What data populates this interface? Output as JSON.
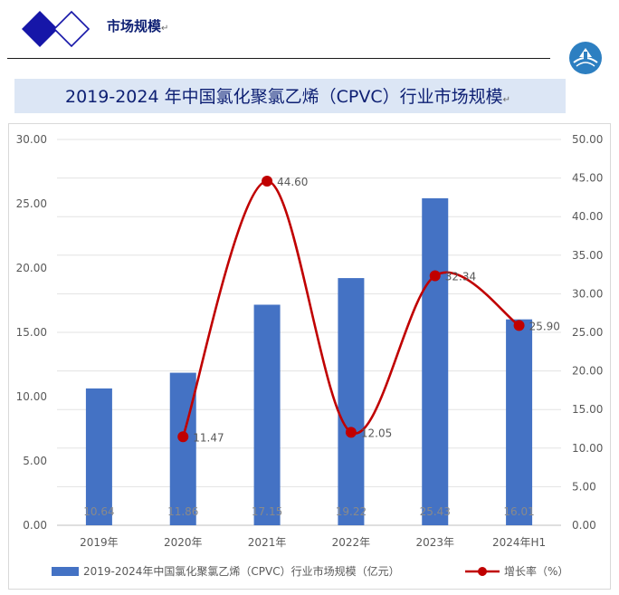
{
  "header": {
    "section_title": "市场规模",
    "return_mark": "↵"
  },
  "chart_data": {
    "type": "bar+line",
    "title": "2019-2024 年中国氯化聚氯乙烯（CPVC）行业市场规模",
    "categories": [
      "2019年",
      "2020年",
      "2021年",
      "2022年",
      "2023年",
      "2024年H1"
    ],
    "series": [
      {
        "name": "2019-2024年中国氯化聚氯乙烯（CPVC）行业市场规模（亿元）",
        "type": "bar",
        "axis": "left",
        "color": "#4472c4",
        "values": [
          10.64,
          11.86,
          17.15,
          19.22,
          25.43,
          16.01
        ],
        "labels": [
          "10.64",
          "11.86",
          "17.15",
          "19.22",
          "25.43",
          "16.01"
        ]
      },
      {
        "name": "增长率（%）",
        "type": "line",
        "axis": "right",
        "color": "#c00000",
        "values": [
          null,
          11.47,
          44.6,
          12.05,
          32.34,
          25.9
        ],
        "labels": [
          "",
          "11.47",
          "44.60",
          "12.05",
          "32.34",
          "25.90"
        ]
      }
    ],
    "y_left": {
      "min": 0,
      "max": 30,
      "ticks": [
        "0.00",
        "5.00",
        "10.00",
        "15.00",
        "20.00",
        "25.00",
        "30.00"
      ]
    },
    "y_right": {
      "min": 0,
      "max": 50,
      "ticks": [
        "0.00",
        "5.00",
        "10.00",
        "15.00",
        "20.00",
        "25.00",
        "30.00",
        "35.00",
        "40.00",
        "45.00",
        "50.00"
      ]
    },
    "grid": true,
    "legend": "bottom",
    "legend_entries": [
      "2019-2024年中国氯化聚氯乙烯（CPVC）行业市场规模（亿元）",
      "增长率（%）"
    ]
  }
}
